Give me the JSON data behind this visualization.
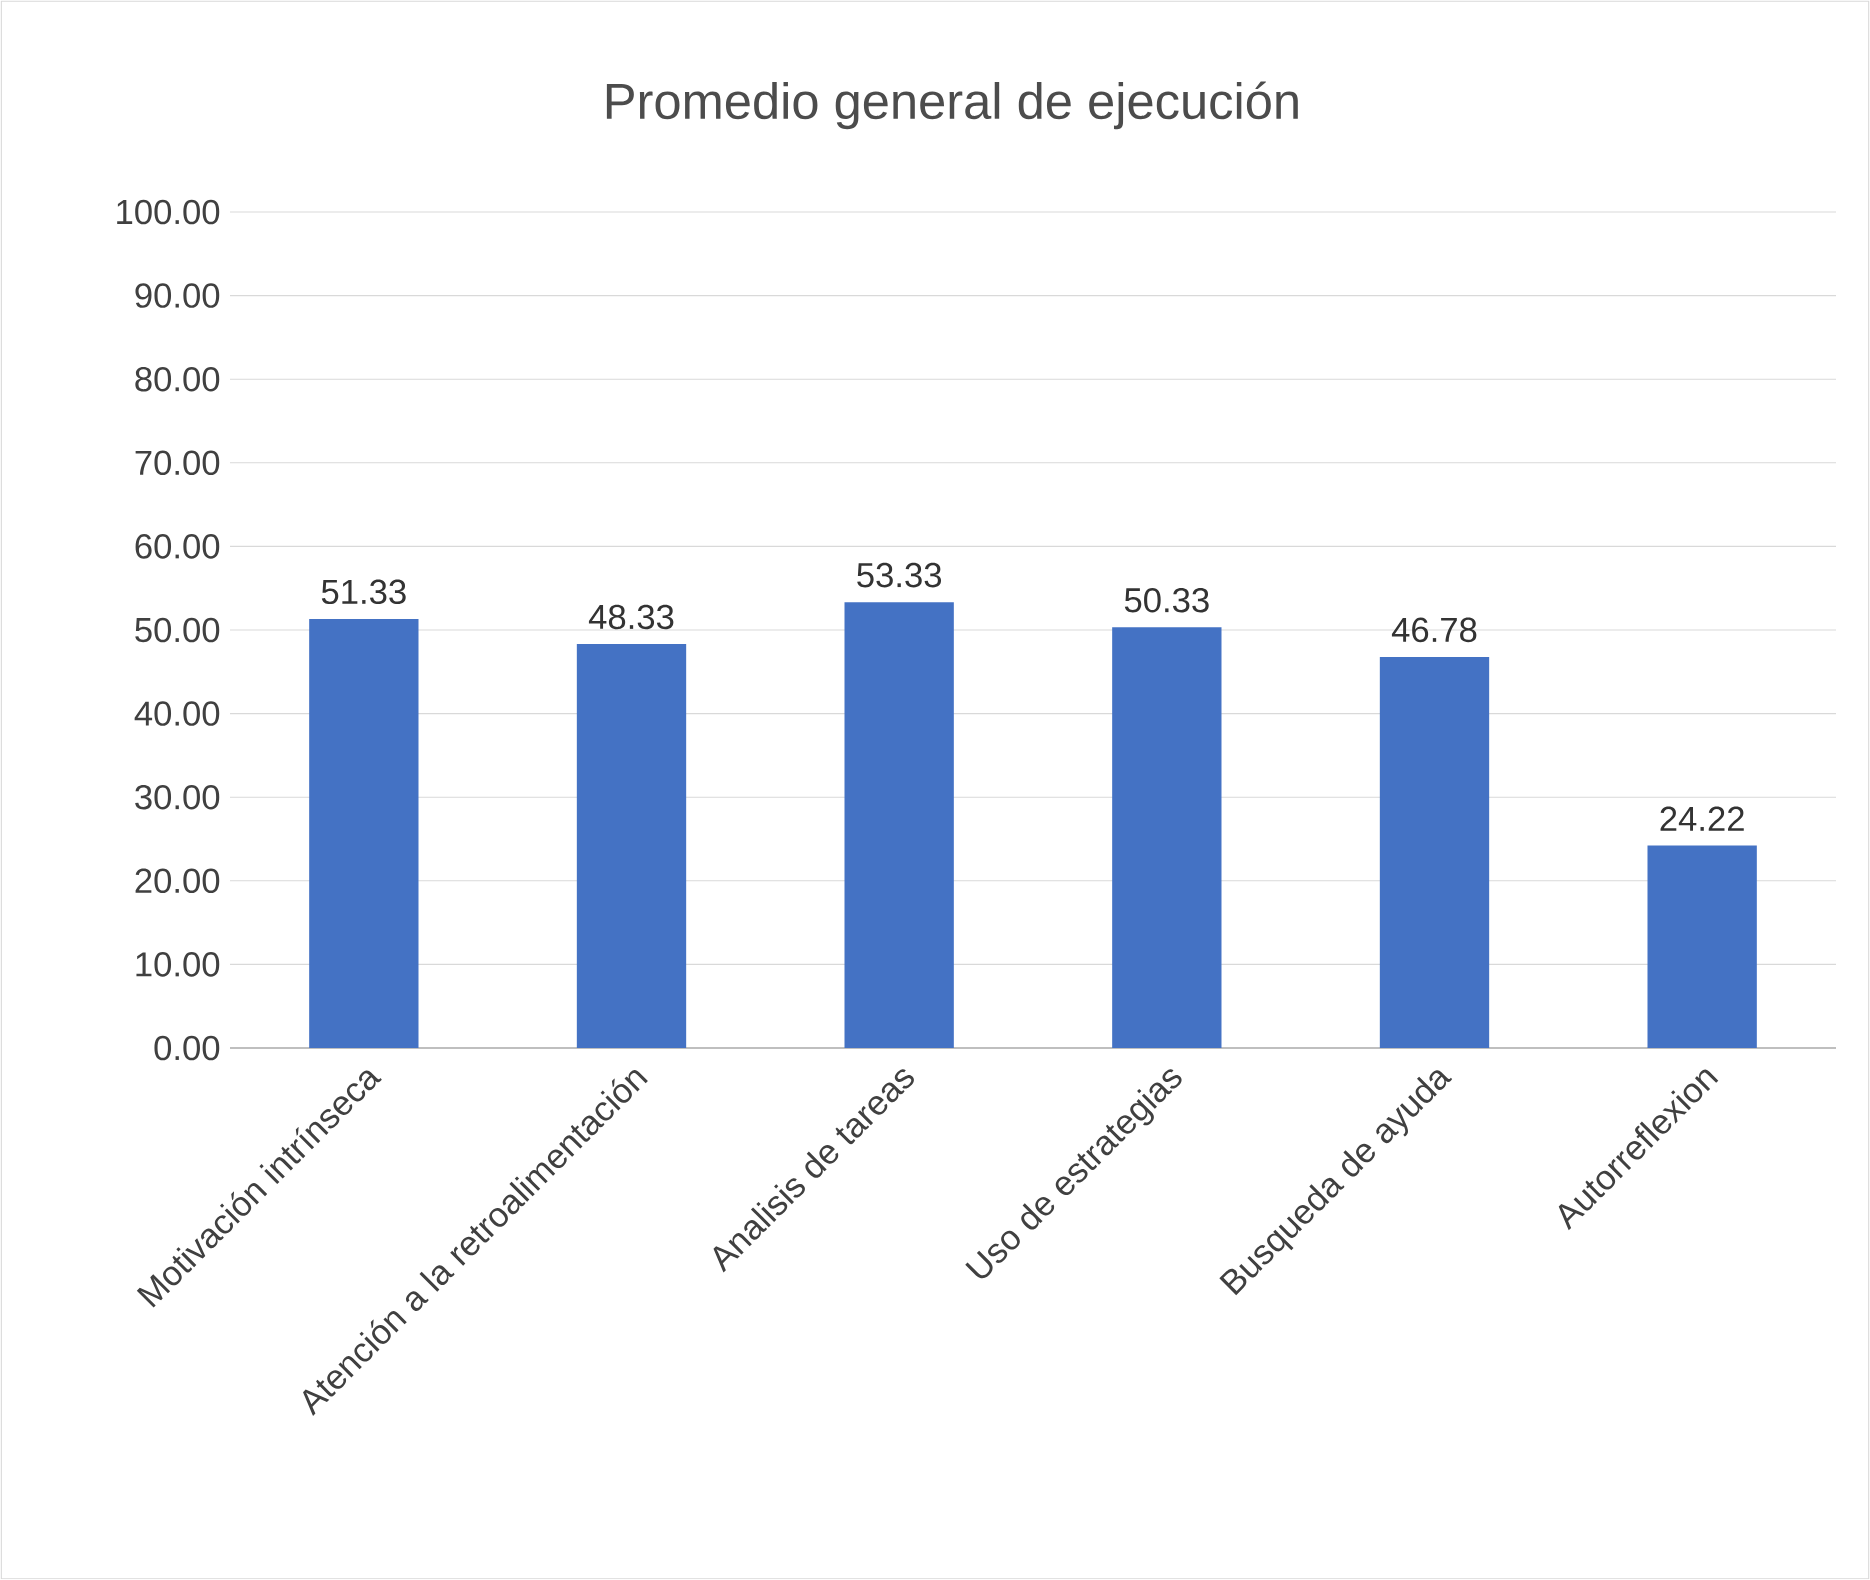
{
  "chart_data": {
    "type": "bar",
    "title": "Promedio general de ejecución",
    "categories": [
      "Motivación intrínseca",
      "Atención a la retroalimentación",
      "Analisis de tareas",
      "Uso de estrategias",
      "Busqueda de ayuda",
      "Autorreflexion"
    ],
    "values": [
      51.33,
      48.33,
      53.33,
      50.33,
      46.78,
      24.22
    ],
    "color": "#4472c4",
    "ylim": [
      0,
      100
    ],
    "yticks": [
      {
        "value": 0,
        "label": "0.00"
      },
      {
        "value": 10,
        "label": "10.00"
      },
      {
        "value": 20,
        "label": "20.00"
      },
      {
        "value": 30,
        "label": "30.00"
      },
      {
        "value": 40,
        "label": "40.00"
      },
      {
        "value": 50,
        "label": "50.00"
      },
      {
        "value": 60,
        "label": "60.00"
      },
      {
        "value": 70,
        "label": "70.00"
      },
      {
        "value": 80,
        "label": "80.00"
      },
      {
        "value": 90,
        "label": "90.00"
      },
      {
        "value": 100,
        "label": "100.00"
      }
    ],
    "grid": true,
    "data_labels": true
  }
}
